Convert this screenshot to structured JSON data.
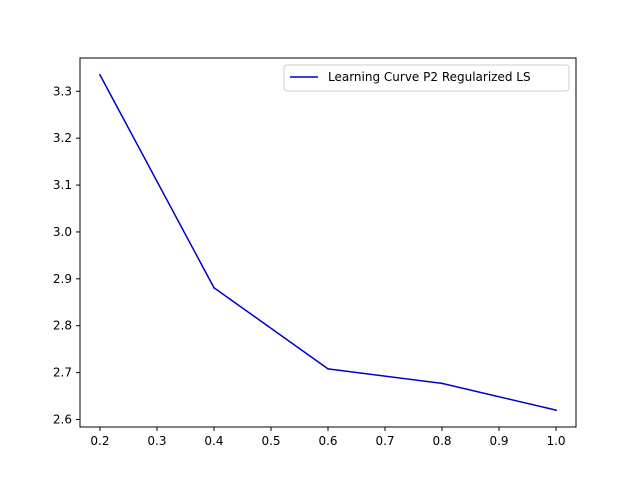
{
  "chart_data": {
    "type": "line",
    "title": "",
    "xlabel": "",
    "ylabel": "",
    "x": [
      0.2,
      0.4,
      0.6,
      0.8,
      1.0
    ],
    "series": [
      {
        "name": "Learning Curve P2 Regularized LS",
        "values": [
          3.335,
          2.881,
          2.708,
          2.677,
          2.62
        ],
        "color": "#0000cc"
      }
    ],
    "xlim": [
      0.165,
      1.035
    ],
    "ylim": [
      2.584,
      3.371
    ],
    "xticks": [
      0.2,
      0.3,
      0.4,
      0.5,
      0.6,
      0.7,
      0.8,
      0.9,
      1.0
    ],
    "xtick_labels": [
      "0.2",
      "0.3",
      "0.4",
      "0.5",
      "0.6",
      "0.7",
      "0.8",
      "0.9",
      "1.0"
    ],
    "yticks": [
      2.6,
      2.7,
      2.8,
      2.9,
      3.0,
      3.1,
      3.2,
      3.3
    ],
    "ytick_labels": [
      "2.6",
      "2.7",
      "2.8",
      "2.9",
      "3.0",
      "3.1",
      "3.2",
      "3.3"
    ],
    "grid": false,
    "legend_position": "top-right"
  }
}
